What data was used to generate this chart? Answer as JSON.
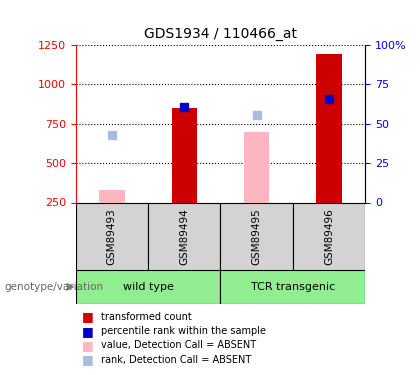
{
  "title": "GDS1934 / 110466_at",
  "samples": [
    "GSM89493",
    "GSM89494",
    "GSM89495",
    "GSM89496"
  ],
  "transformed_count": [
    null,
    850,
    null,
    1195
  ],
  "percentile_rank_val": [
    null,
    855,
    null,
    910
  ],
  "value_absent": [
    330,
    null,
    700,
    null
  ],
  "rank_absent_val": [
    680,
    null,
    805,
    null
  ],
  "ylim_left": [
    250,
    1250
  ],
  "ylim_right": [
    0,
    100
  ],
  "yticks_left": [
    250,
    500,
    750,
    1000,
    1250
  ],
  "yticks_right": [
    0,
    25,
    50,
    75,
    100
  ],
  "bar_width": 0.35,
  "color_transformed": "#CC0000",
  "color_percentile": "#0000CC",
  "color_value_absent": "#FFB6C1",
  "color_rank_absent": "#AABBDD",
  "title_fontsize": 10,
  "xlabel_attr": "genotype/variation",
  "grid_color": "black",
  "groups": [
    {
      "name": "wild type",
      "start": 0,
      "end": 2,
      "color": "#90EE90"
    },
    {
      "name": "TCR transgenic",
      "start": 2,
      "end": 4,
      "color": "#90EE90"
    }
  ],
  "legend_items": [
    {
      "color": "#CC0000",
      "label": "transformed count"
    },
    {
      "color": "#0000CC",
      "label": "percentile rank within the sample"
    },
    {
      "color": "#FFB6C1",
      "label": "value, Detection Call = ABSENT"
    },
    {
      "color": "#AABBDD",
      "label": "rank, Detection Call = ABSENT"
    }
  ]
}
